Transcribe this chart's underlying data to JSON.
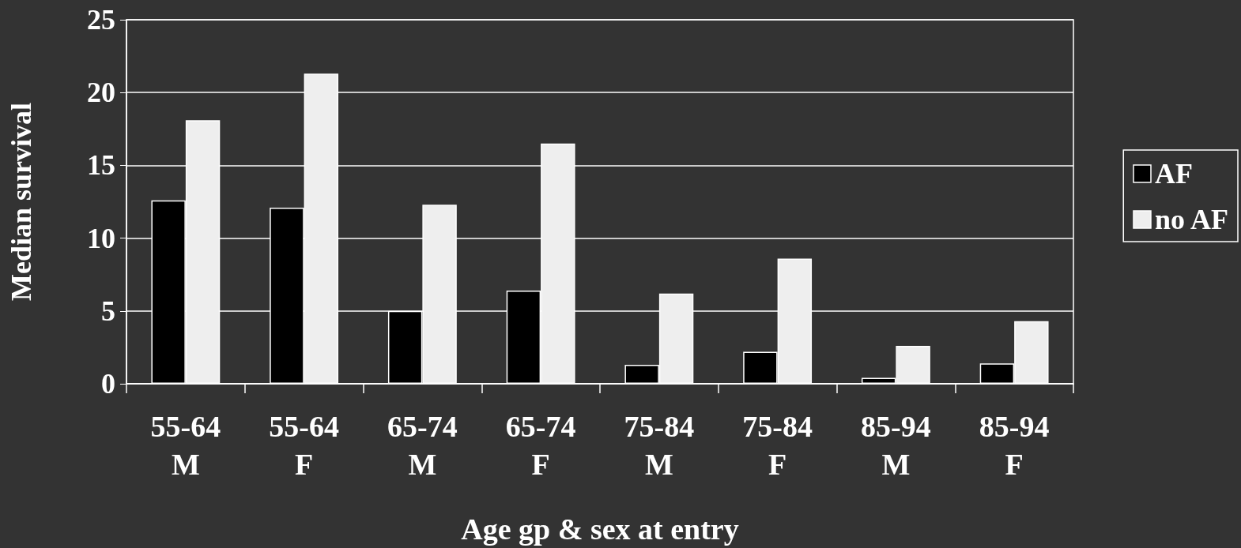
{
  "chart_data": {
    "type": "bar",
    "xlabel": "Age gp & sex at entry",
    "ylabel": "Median survival",
    "categories": [
      "55-64\nM",
      "55-64\nF",
      "65-74\nM",
      "65-74\nF",
      "75-84\nM",
      "75-84\nF",
      "85-94\nM",
      "85-94\nF"
    ],
    "series": [
      {
        "name": "AF",
        "color": "#000000",
        "values": [
          12.6,
          12.1,
          5.0,
          6.4,
          1.3,
          2.2,
          0.4,
          1.4
        ]
      },
      {
        "name": "no AF",
        "color": "#eeeeee",
        "values": [
          18.1,
          21.3,
          12.3,
          16.5,
          6.2,
          8.6,
          2.6,
          4.3
        ]
      }
    ],
    "ylim": [
      0,
      25
    ],
    "yticks": [
      0,
      5,
      10,
      15,
      20,
      25
    ],
    "grid": "y",
    "legend": "right"
  }
}
